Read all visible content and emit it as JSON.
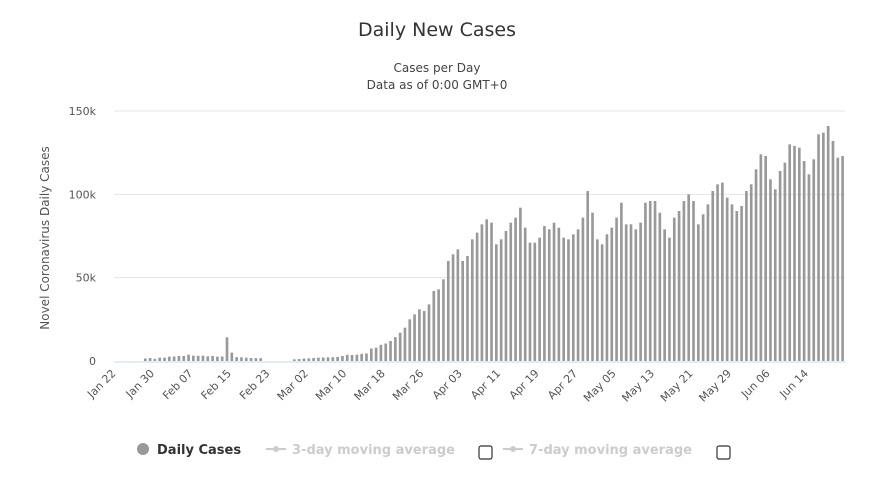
{
  "chart_data": {
    "type": "bar",
    "title": "Daily New Cases",
    "subtitle": [
      "Cases per Day",
      "Data as of 0:00 GMT+0"
    ],
    "ylabel": "Novel Coronavirus Daily Cases",
    "xlabel": "",
    "ylim": [
      0,
      150000
    ],
    "y_ticks": [
      0,
      50000,
      100000,
      150000
    ],
    "y_tick_labels": [
      "0",
      "50k",
      "100k",
      "150k"
    ],
    "grid": true,
    "x_tick_labels": [
      "Jan 22",
      "Jan 30",
      "Feb 07",
      "Feb 15",
      "Feb 23",
      "Mar 02",
      "Mar 10",
      "Mar 18",
      "Mar 26",
      "Apr 03",
      "Apr 11",
      "Apr 19",
      "Apr 27",
      "May 05",
      "May 13",
      "May 21",
      "May 29",
      "Jun 06",
      "Jun 14"
    ],
    "x_tick_every": 8,
    "series": [
      {
        "name": "Daily Cases",
        "color": "#999999",
        "values": [
          0,
          0,
          0,
          0,
          0,
          0,
          1500,
          1800,
          1300,
          2000,
          2000,
          2600,
          2700,
          3000,
          3000,
          3800,
          3200,
          3100,
          3200,
          2800,
          3000,
          2600,
          2700,
          14200,
          5000,
          2300,
          2200,
          2000,
          1800,
          1700,
          1700,
          0,
          0,
          0,
          0,
          0,
          0,
          1000,
          1200,
          1500,
          1600,
          1800,
          2000,
          2100,
          2200,
          2300,
          2400,
          3000,
          3700,
          3600,
          3800,
          4300,
          4500,
          7500,
          8000,
          9700,
          10500,
          12000,
          14300,
          17000,
          20000,
          25000,
          28000,
          31000,
          30000,
          34000,
          42000,
          43000,
          49000,
          60000,
          64000,
          67000,
          60000,
          63000,
          73000,
          77000,
          82000,
          85000,
          83000,
          70000,
          73000,
          78000,
          83000,
          86000,
          92000,
          80000,
          71000,
          71000,
          74000,
          81000,
          79000,
          83000,
          80000,
          74000,
          73000,
          76000,
          79000,
          86000,
          102000,
          89000,
          73000,
          70000,
          76000,
          80000,
          86000,
          95000,
          82000,
          82000,
          79000,
          83000,
          95000,
          96000,
          96000,
          89000,
          79000,
          74000,
          86000,
          90000,
          96000,
          100000,
          96000,
          82000,
          88000,
          94000,
          102000,
          106000,
          107000,
          98000,
          94000,
          90000,
          93000,
          102000,
          106000,
          115000,
          124000,
          123000,
          109000,
          103000,
          114000,
          119000,
          130000,
          129000,
          128000,
          120000,
          112000,
          121000,
          136000,
          137000,
          141000,
          132000,
          122000,
          123000
        ]
      },
      {
        "name": "3-day moving average",
        "visible": false
      },
      {
        "name": "7-day moving average",
        "visible": false
      }
    ],
    "legend": "bottom-center"
  },
  "legend": {
    "daily": "Daily Cases",
    "ma3": "3-day moving average",
    "ma7": "7-day moving average"
  }
}
